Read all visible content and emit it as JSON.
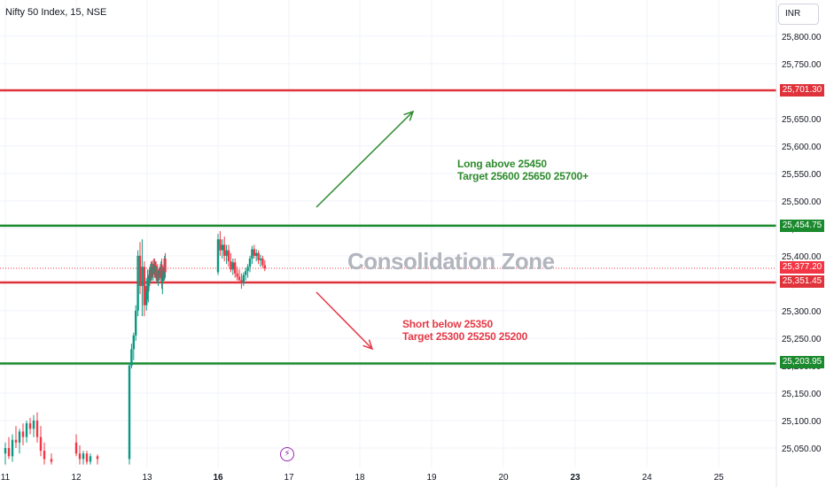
{
  "header": {
    "symbol_title": "Nifty 50 Index, 15, NSE",
    "currency_button": "INR"
  },
  "colors": {
    "up": "#089981",
    "down": "#f23645",
    "support_green": "#1b8a2e",
    "resistance_red": "#e0323a",
    "target_arrow_green": "#2e8b2e",
    "short_arrow_red": "#e53946"
  },
  "annotations": {
    "long_line1": "Long above 25450",
    "long_line2": "Target 25600 25650 25700+",
    "short_line1": "Short below 25350",
    "short_line2": "Target 25300 25250 25200",
    "zone_label": "Consolidation Zone"
  },
  "badges": {
    "b1": "25,701.30",
    "b2": "25,454.75",
    "b3": "25,377.20",
    "b4": "25,351.45",
    "b5": "25,203.95"
  },
  "chart_data": {
    "type": "candlestick",
    "title": "Nifty 50 Index, 15, NSE",
    "y_axis_ticks": [
      "25,800.00",
      "25,750.00",
      "25,700.00",
      "25,650.00",
      "25,600.00",
      "25,550.00",
      "25,500.00",
      "25,450.00",
      "25,400.00",
      "25,350.00",
      "25,300.00",
      "25,250.00",
      "25,200.00",
      "25,150.00",
      "25,100.00",
      "25,050.00"
    ],
    "x_axis_ticks": [
      "11",
      "12",
      "13",
      "16",
      "17",
      "18",
      "19",
      "20",
      "23",
      "24",
      "25"
    ],
    "ylim": [
      25020,
      25830
    ],
    "last_price": 25377.2,
    "horizontal_levels": [
      {
        "price": 25701.3,
        "color": "red"
      },
      {
        "price": 25454.75,
        "color": "green"
      },
      {
        "price": 25351.45,
        "color": "red"
      },
      {
        "price": 25203.95,
        "color": "green"
      }
    ],
    "candles": [
      {
        "day": 11.0,
        "o": 25040,
        "h": 25060,
        "l": 25020,
        "c": 25050
      },
      {
        "day": 11.05,
        "o": 25050,
        "h": 25070,
        "l": 25030,
        "c": 25035
      },
      {
        "day": 11.1,
        "o": 25035,
        "h": 25075,
        "l": 25025,
        "c": 25065
      },
      {
        "day": 11.15,
        "o": 25065,
        "h": 25090,
        "l": 25050,
        "c": 25060
      },
      {
        "day": 11.2,
        "o": 25060,
        "h": 25085,
        "l": 25040,
        "c": 25080
      },
      {
        "day": 11.25,
        "o": 25080,
        "h": 25095,
        "l": 25055,
        "c": 25070
      },
      {
        "day": 11.3,
        "o": 25070,
        "h": 25100,
        "l": 25060,
        "c": 25095
      },
      {
        "day": 11.35,
        "o": 25095,
        "h": 25105,
        "l": 25075,
        "c": 25085
      },
      {
        "day": 11.4,
        "o": 25085,
        "h": 25110,
        "l": 25070,
        "c": 25100
      },
      {
        "day": 11.45,
        "o": 25100,
        "h": 25115,
        "l": 25060,
        "c": 25070
      },
      {
        "day": 11.5,
        "o": 25070,
        "h": 25090,
        "l": 25035,
        "c": 25045
      },
      {
        "day": 11.55,
        "o": 25045,
        "h": 25060,
        "l": 25020,
        "c": 25030
      },
      {
        "day": 11.65,
        "o": 25030,
        "h": 25040,
        "l": 25020,
        "c": 25025
      },
      {
        "day": 12.0,
        "o": 25060,
        "h": 25075,
        "l": 25035,
        "c": 25040
      },
      {
        "day": 12.05,
        "o": 25040,
        "h": 25055,
        "l": 25020,
        "c": 25030
      },
      {
        "day": 12.1,
        "o": 25030,
        "h": 25045,
        "l": 25020,
        "c": 25040
      },
      {
        "day": 12.15,
        "o": 25040,
        "h": 25045,
        "l": 25020,
        "c": 25025
      },
      {
        "day": 12.2,
        "o": 25025,
        "h": 25040,
        "l": 25020,
        "c": 25035
      },
      {
        "day": 12.3,
        "o": 25035,
        "h": 25038,
        "l": 25020,
        "c": 25030
      },
      {
        "day": 12.75,
        "o": 25030,
        "h": 25205,
        "l": 25020,
        "c": 25200
      },
      {
        "day": 12.78,
        "o": 25200,
        "h": 25240,
        "l": 25195,
        "c": 25230
      },
      {
        "day": 12.81,
        "o": 25230,
        "h": 25260,
        "l": 25210,
        "c": 25255
      },
      {
        "day": 12.84,
        "o": 25255,
        "h": 25310,
        "l": 25245,
        "c": 25300
      },
      {
        "day": 12.87,
        "o": 25300,
        "h": 25410,
        "l": 25290,
        "c": 25400
      },
      {
        "day": 12.9,
        "o": 25400,
        "h": 25425,
        "l": 25330,
        "c": 25345
      },
      {
        "day": 12.93,
        "o": 25345,
        "h": 25430,
        "l": 25290,
        "c": 25380
      },
      {
        "day": 12.96,
        "o": 25380,
        "h": 25390,
        "l": 25290,
        "c": 25310
      },
      {
        "day": 12.99,
        "o": 25310,
        "h": 25360,
        "l": 25300,
        "c": 25345
      },
      {
        "day": 13.02,
        "o": 25345,
        "h": 25375,
        "l": 25320,
        "c": 25335
      },
      {
        "day": 13.05,
        "o": 25335,
        "h": 25360,
        "l": 25315,
        "c": 25355
      },
      {
        "day": 13.08,
        "o": 25355,
        "h": 25375,
        "l": 25340,
        "c": 25365
      },
      {
        "day": 13.11,
        "o": 25365,
        "h": 25380,
        "l": 25345,
        "c": 25360
      },
      {
        "day": 13.14,
        "o": 25360,
        "h": 25385,
        "l": 25350,
        "c": 25375
      },
      {
        "day": 13.17,
        "o": 25375,
        "h": 25390,
        "l": 25355,
        "c": 25362
      },
      {
        "day": 13.2,
        "o": 25362,
        "h": 25388,
        "l": 25355,
        "c": 25380
      },
      {
        "day": 13.23,
        "o": 25380,
        "h": 25392,
        "l": 25360,
        "c": 25368
      },
      {
        "day": 13.26,
        "o": 25368,
        "h": 25385,
        "l": 25355,
        "c": 25378
      },
      {
        "day": 13.29,
        "o": 25378,
        "h": 25395,
        "l": 25365,
        "c": 25385
      },
      {
        "day": 13.32,
        "o": 25385,
        "h": 25395,
        "l": 25360,
        "c": 25370
      },
      {
        "day": 13.35,
        "o": 25370,
        "h": 25390,
        "l": 25360,
        "c": 25382
      },
      {
        "day": 13.38,
        "o": 25382,
        "h": 25390,
        "l": 25355,
        "c": 25360
      },
      {
        "day": 13.41,
        "o": 25360,
        "h": 25380,
        "l": 25350,
        "c": 25375
      },
      {
        "day": 13.44,
        "o": 25375,
        "h": 25385,
        "l": 25350,
        "c": 25358
      },
      {
        "day": 13.47,
        "o": 25358,
        "h": 25372,
        "l": 25345,
        "c": 25368
      },
      {
        "day": 13.5,
        "o": 25368,
        "h": 25378,
        "l": 25355,
        "c": 25362
      },
      {
        "day": 13.53,
        "o": 25362,
        "h": 25380,
        "l": 25355,
        "c": 25374
      },
      {
        "day": 13.56,
        "o": 25374,
        "h": 25385,
        "l": 25360,
        "c": 25366
      },
      {
        "day": 13.59,
        "o": 25366,
        "h": 25390,
        "l": 25358,
        "c": 25384
      },
      {
        "day": 13.62,
        "o": 25384,
        "h": 25395,
        "l": 25340,
        "c": 25350
      },
      {
        "day": 13.65,
        "o": 25350,
        "h": 25372,
        "l": 25330,
        "c": 25365
      },
      {
        "day": 13.68,
        "o": 25365,
        "h": 25380,
        "l": 25350,
        "c": 25372
      },
      {
        "day": 13.71,
        "o": 25372,
        "h": 25385,
        "l": 25355,
        "c": 25360
      },
      {
        "day": 13.74,
        "o": 25360,
        "h": 25400,
        "l": 25355,
        "c": 25395
      },
      {
        "day": 13.77,
        "o": 25395,
        "h": 25405,
        "l": 25360,
        "c": 25370
      },
      {
        "day": 16.0,
        "o": 25370,
        "h": 25440,
        "l": 25365,
        "c": 25430
      },
      {
        "day": 16.03,
        "o": 25430,
        "h": 25445,
        "l": 25400,
        "c": 25410
      },
      {
        "day": 16.06,
        "o": 25410,
        "h": 25430,
        "l": 25395,
        "c": 25420
      },
      {
        "day": 16.09,
        "o": 25420,
        "h": 25435,
        "l": 25390,
        "c": 25400
      },
      {
        "day": 16.12,
        "o": 25400,
        "h": 25420,
        "l": 25385,
        "c": 25410
      },
      {
        "day": 16.15,
        "o": 25410,
        "h": 25420,
        "l": 25380,
        "c": 25390
      },
      {
        "day": 16.18,
        "o": 25390,
        "h": 25405,
        "l": 25370,
        "c": 25375
      },
      {
        "day": 16.21,
        "o": 25375,
        "h": 25395,
        "l": 25365,
        "c": 25388
      },
      {
        "day": 16.24,
        "o": 25388,
        "h": 25395,
        "l": 25360,
        "c": 25368
      },
      {
        "day": 16.27,
        "o": 25368,
        "h": 25380,
        "l": 25355,
        "c": 25362
      },
      {
        "day": 16.3,
        "o": 25362,
        "h": 25375,
        "l": 25350,
        "c": 25356
      },
      {
        "day": 16.33,
        "o": 25356,
        "h": 25368,
        "l": 25340,
        "c": 25350
      },
      {
        "day": 16.36,
        "o": 25350,
        "h": 25370,
        "l": 25345,
        "c": 25365
      },
      {
        "day": 16.39,
        "o": 25365,
        "h": 25378,
        "l": 25355,
        "c": 25372
      },
      {
        "day": 16.42,
        "o": 25372,
        "h": 25385,
        "l": 25360,
        "c": 25380
      },
      {
        "day": 16.45,
        "o": 25380,
        "h": 25400,
        "l": 25370,
        "c": 25395
      },
      {
        "day": 16.48,
        "o": 25395,
        "h": 25418,
        "l": 25385,
        "c": 25412
      },
      {
        "day": 16.51,
        "o": 25412,
        "h": 25420,
        "l": 25395,
        "c": 25400
      },
      {
        "day": 16.54,
        "o": 25400,
        "h": 25412,
        "l": 25390,
        "c": 25405
      },
      {
        "day": 16.57,
        "o": 25405,
        "h": 25410,
        "l": 25385,
        "c": 25392
      },
      {
        "day": 16.6,
        "o": 25392,
        "h": 25402,
        "l": 25380,
        "c": 25395
      },
      {
        "day": 16.63,
        "o": 25395,
        "h": 25400,
        "l": 25378,
        "c": 25383
      },
      {
        "day": 16.66,
        "o": 25383,
        "h": 25392,
        "l": 25372,
        "c": 25377
      }
    ]
  }
}
